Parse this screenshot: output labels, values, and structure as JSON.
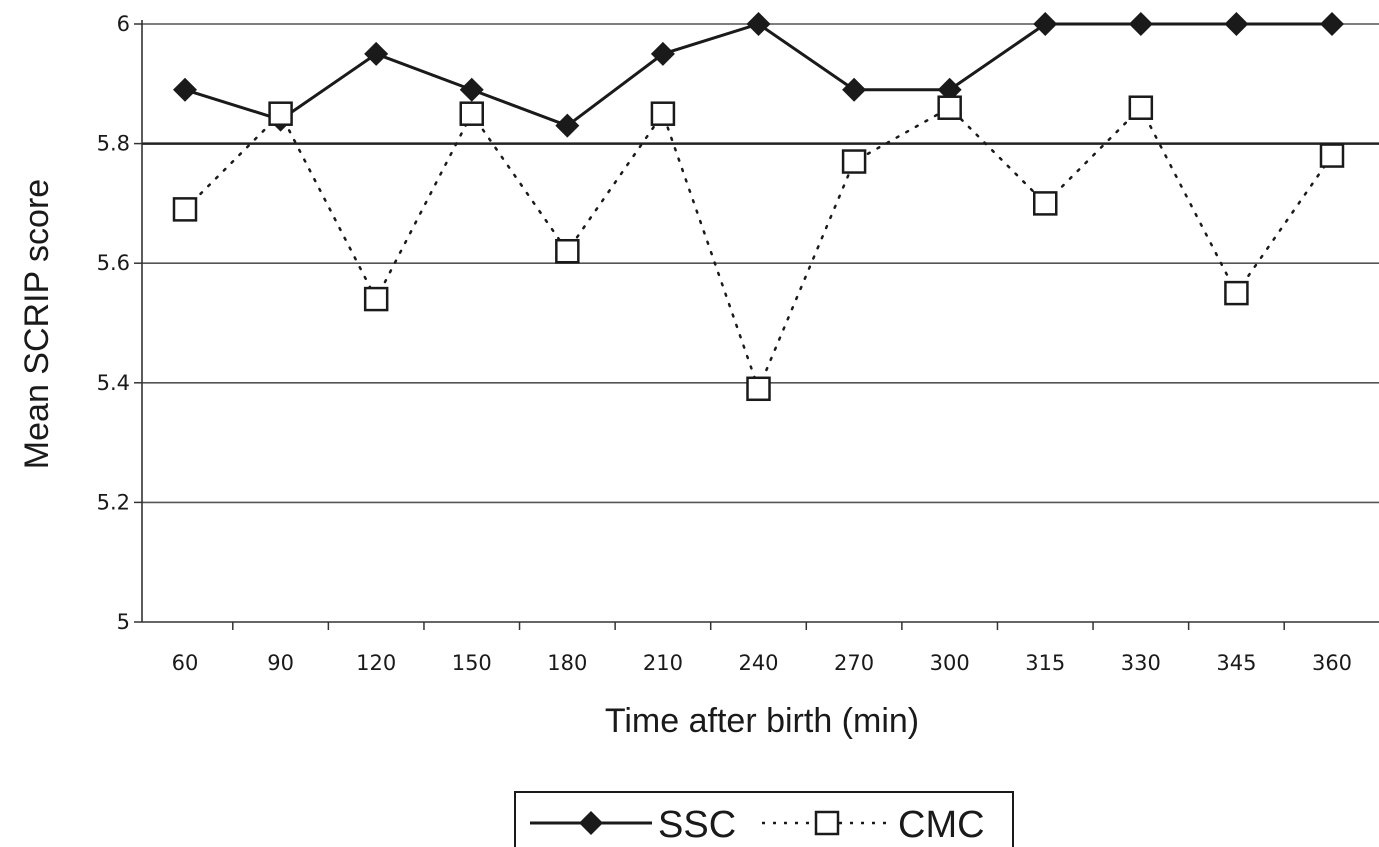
{
  "chart_data": {
    "type": "line",
    "xlabel": "Time after birth (min)",
    "ylabel": "Mean SCRIP score",
    "categories": [
      "60",
      "90",
      "120",
      "150",
      "180",
      "210",
      "240",
      "270",
      "300",
      "315",
      "330",
      "345",
      "360"
    ],
    "ylim": [
      5,
      6
    ],
    "yticks": [
      5,
      5.2,
      5.4,
      5.6,
      5.8,
      6
    ],
    "ytick_labels": [
      "5",
      "5.2",
      "5.4",
      "5.6",
      "5.8",
      "6"
    ],
    "grid": "horizontal",
    "legend_position": "bottom",
    "series": [
      {
        "name": "SSC",
        "values": [
          5.89,
          5.84,
          5.95,
          5.89,
          5.83,
          5.95,
          6.0,
          5.89,
          5.89,
          6.0,
          6.0,
          6.0,
          6.0
        ],
        "line_style": "solid",
        "marker": "filled-diamond",
        "color": "#1a1a1a"
      },
      {
        "name": "CMC",
        "values": [
          5.69,
          5.85,
          5.54,
          5.85,
          5.62,
          5.85,
          5.39,
          5.77,
          5.86,
          5.7,
          5.86,
          5.55,
          5.78
        ],
        "line_style": "dotted",
        "marker": "open-square",
        "color": "#1a1a1a"
      }
    ]
  }
}
